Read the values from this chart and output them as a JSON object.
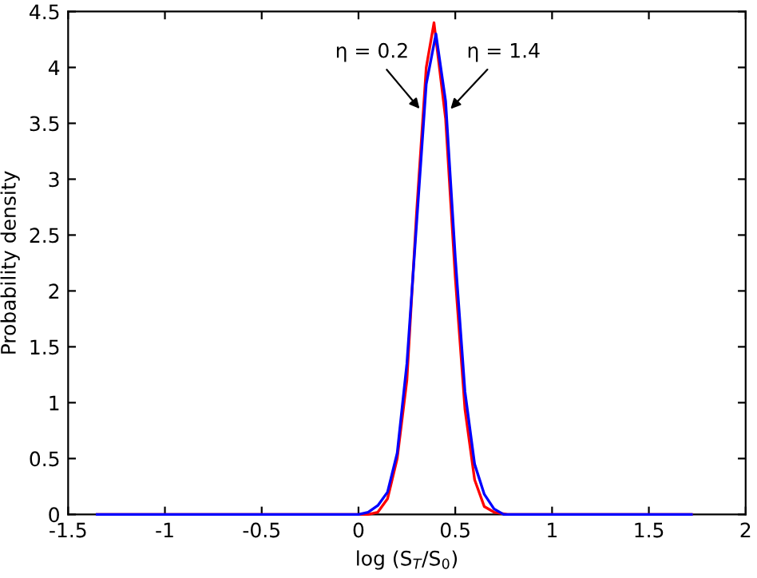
{
  "chart_data": {
    "type": "line",
    "xlabel": "log (S$_{T}$/S$_{0}$)",
    "ylabel": "Probability density",
    "series": [
      {
        "color": "#ff0000",
        "x": [
          -1.35,
          0.05,
          0.1,
          0.15,
          0.2,
          0.25,
          0.3,
          0.35,
          0.39,
          0.45,
          0.5,
          0.55,
          0.6,
          0.65,
          0.7,
          0.77,
          1.72
        ],
        "values": [
          0,
          0,
          0.02,
          0.14,
          0.5,
          1.2,
          2.7,
          4.0,
          4.4,
          3.54,
          2.12,
          0.94,
          0.31,
          0.07,
          0.02,
          0,
          0
        ]
      },
      {
        "color": "#0000ff",
        "x": [
          -1.35,
          0.0,
          0.05,
          0.1,
          0.15,
          0.2,
          0.25,
          0.3,
          0.35,
          0.4,
          0.45,
          0.5,
          0.55,
          0.6,
          0.65,
          0.7,
          0.75,
          1.72
        ],
        "values": [
          0,
          0,
          0.02,
          0.08,
          0.2,
          0.55,
          1.35,
          2.6,
          3.85,
          4.3,
          3.7,
          2.3,
          1.1,
          0.45,
          0.18,
          0.05,
          0,
          0
        ]
      }
    ],
    "annotations": [
      {
        "text": "η = 0.2",
        "x": 0.33,
        "y": 3.6
      },
      {
        "text": "η = 1.4",
        "x": 0.46,
        "y": 3.6
      }
    ],
    "xlim": [
      -1.5,
      2
    ],
    "xticks": [
      -1.5,
      -1,
      -0.5,
      0,
      0.5,
      1,
      1.5,
      2
    ],
    "ylim": [
      0,
      4.5
    ],
    "yticks": [
      0,
      0.5,
      1,
      1.5,
      2,
      2.5,
      3,
      3.5,
      4,
      4.5
    ],
    "grid": false,
    "legend": false,
    "marker": "none",
    "line_style": "solid"
  }
}
